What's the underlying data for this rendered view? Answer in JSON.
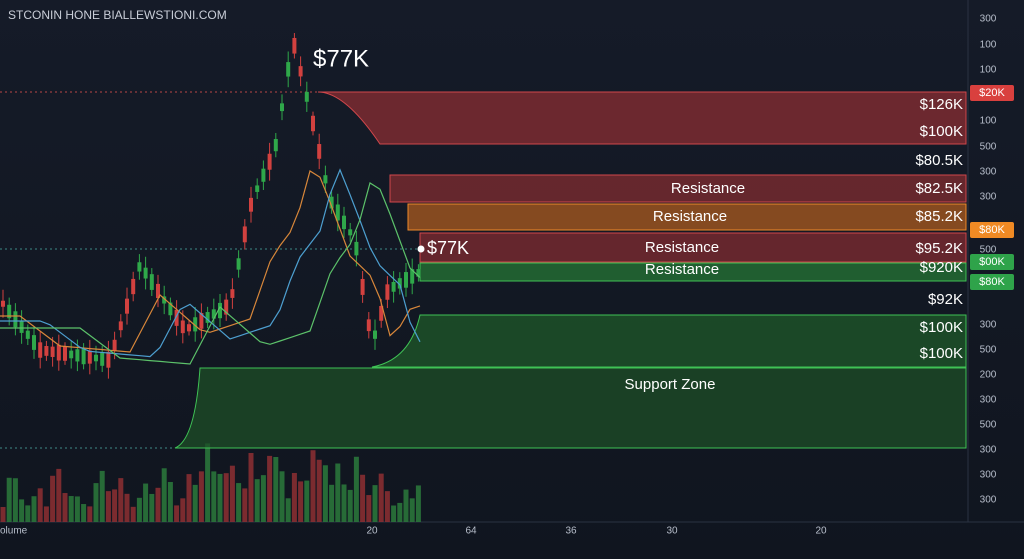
{
  "header": {
    "title": "STCONIN HONE BIALLEWSTIONI.COM"
  },
  "annotations": {
    "peak_price": "$77K",
    "current_price": "$77K"
  },
  "zones": [
    {
      "label": "Resistance"
    },
    {
      "label": "Resistance"
    },
    {
      "label": "Resistance"
    },
    {
      "label": "Resistance"
    },
    {
      "label": "Support Zone"
    }
  ],
  "price_labels": [
    "$126K",
    "$100K",
    "$80.5K",
    "$82.5K",
    "$85.2K",
    "$95.2K",
    "$920K",
    "$92K",
    "$100K",
    "$100K"
  ],
  "right_axis": [
    "300",
    "100",
    "100",
    "$20K",
    "100",
    "500",
    "300",
    "300",
    "$80K",
    "500",
    "$00K",
    "$80K",
    "300",
    "500",
    "200",
    "300",
    "500",
    "300",
    "300",
    "300"
  ],
  "bottom_axis": {
    "label": "olume",
    "ticks": [
      "20",
      "64",
      "36",
      "30",
      "20"
    ]
  }
}
